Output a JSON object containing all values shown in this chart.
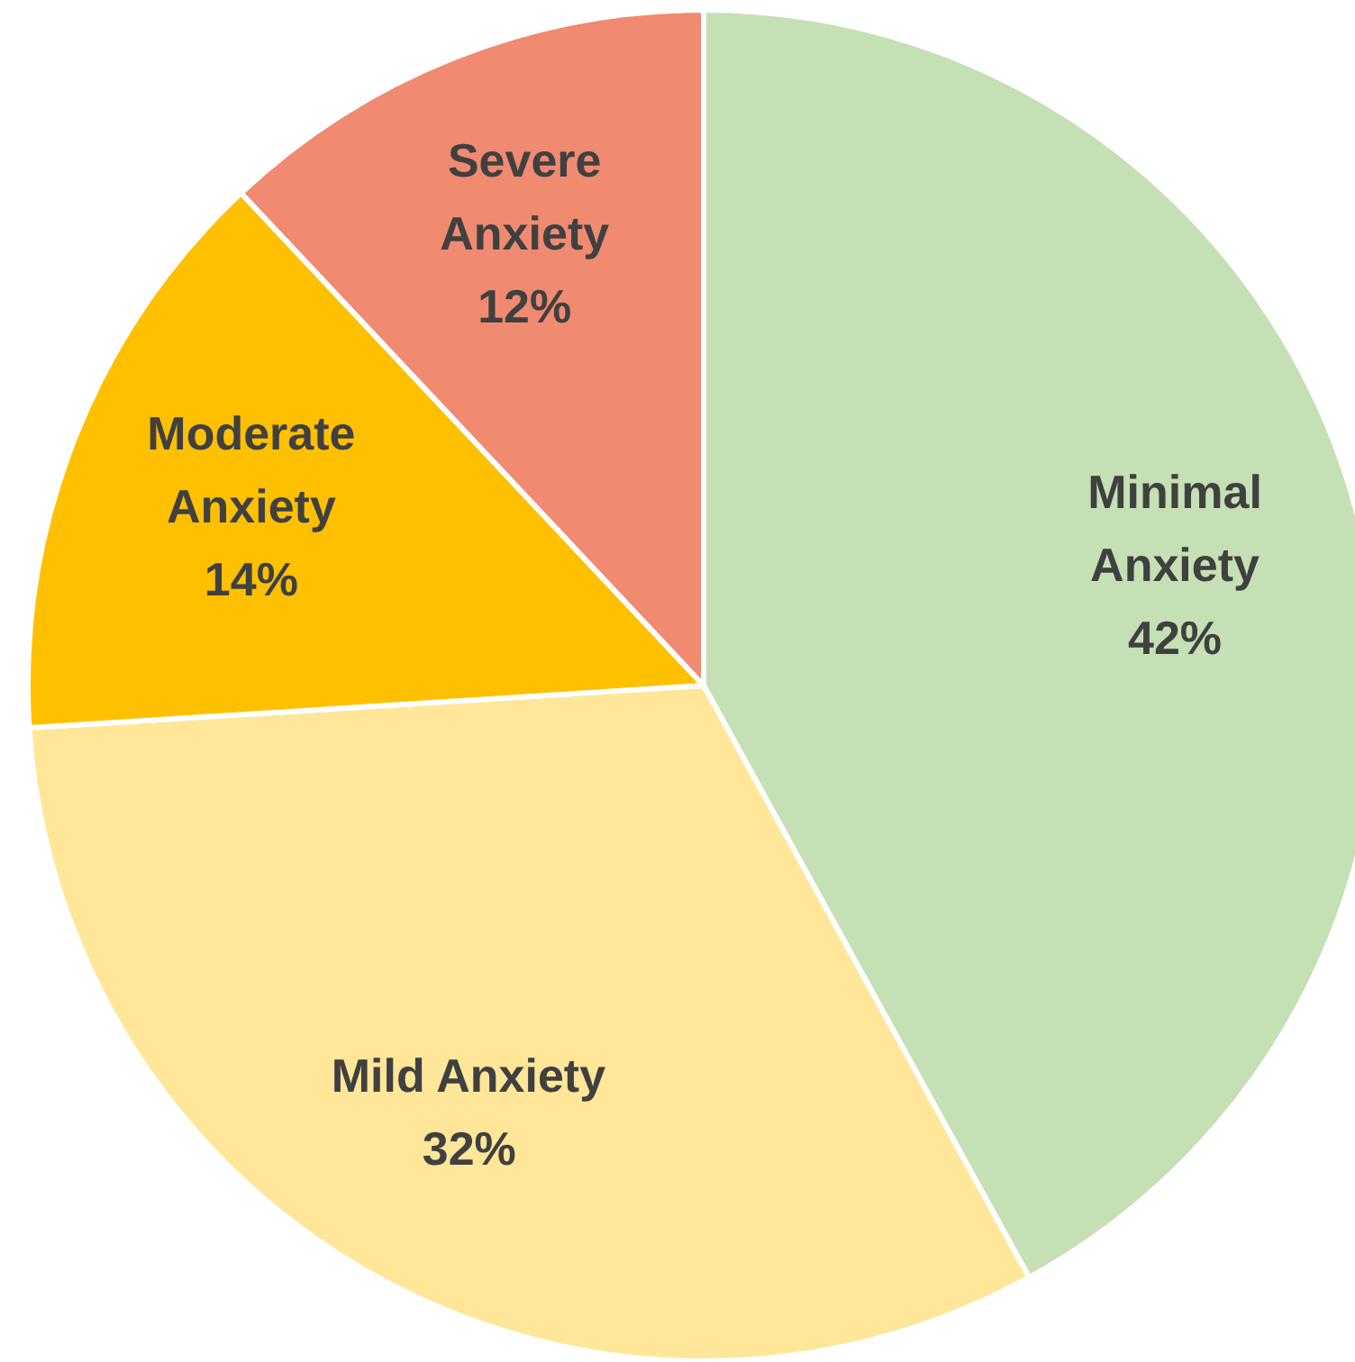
{
  "chart_data": {
    "type": "pie",
    "categories": [
      "Minimal Anxiety",
      "Mild Anxiety",
      "Moderate Anxiety",
      "Severe Anxiety"
    ],
    "values": [
      42,
      32,
      14,
      12
    ],
    "value_labels": [
      "42%",
      "32%",
      "14%",
      "12%"
    ],
    "colors": [
      "#c5e0b4",
      "#ffe699",
      "#ffc000",
      "#f08a70"
    ]
  }
}
